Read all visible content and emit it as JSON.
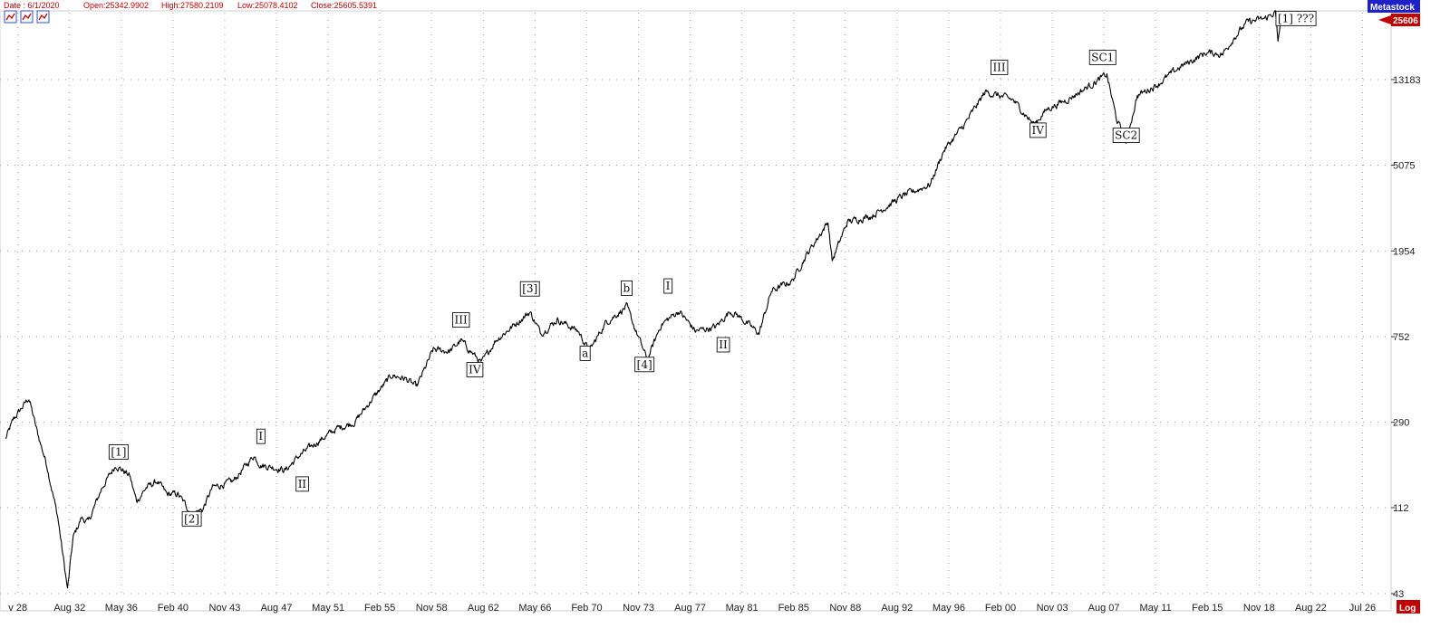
{
  "header": {
    "date": "Date : 6/1/2020",
    "open": "Open:25342.9902",
    "high": "High:27580.2109",
    "low": "Low:25078.4102",
    "close": "Close:25605.5391"
  },
  "badges": {
    "source": "Metastock",
    "scale": "Log"
  },
  "toolbar_icons": [
    "chart-tool-icon",
    "chart-tool-icon",
    "chart-tool-icon"
  ],
  "colors": {
    "badge_blue": "#2020c8",
    "badge_red": "#c00000",
    "price": "#000000",
    "grid": "#9a9a9a"
  },
  "chart_data": {
    "type": "line",
    "scale": "log",
    "ylim": [
      43,
      25606
    ],
    "y_ticks": [
      43,
      112,
      290,
      752,
      1954,
      5075,
      13183
    ],
    "last_price": 25606,
    "x_ticks": [
      "v 28",
      "Aug 32",
      "May 36",
      "Feb 40",
      "Nov 43",
      "Aug 47",
      "May 51",
      "Feb 55",
      "Nov 58",
      "Aug 62",
      "May 66",
      "Feb 70",
      "Nov 73",
      "Aug 77",
      "May 81",
      "Feb 85",
      "Nov 88",
      "Aug 92",
      "May 96",
      "Feb 00",
      "Nov 03",
      "Aug 07",
      "May 11",
      "Feb 15",
      "Nov 18",
      "Aug 22",
      "Jul 26"
    ],
    "series": [
      {
        "values_x": [
          1928.0,
          1928.6,
          1929.7,
          1930.3,
          1931.0,
          1931.8,
          1932.5,
          1932.9,
          1933.5,
          1934.0,
          1935.0,
          1936.0,
          1937.0,
          1937.5,
          1938.2,
          1939.0,
          1939.7,
          1940.5,
          1941.5,
          1942.3,
          1943.0,
          1944.5,
          1946.0,
          1946.5,
          1947.5,
          1948.3,
          1949.3,
          1950.5,
          1952.0,
          1953.3,
          1954.5,
          1956.0,
          1957.0,
          1957.8,
          1959.0,
          1960.2,
          1961.0,
          1962.5,
          1963.5,
          1966.0,
          1966.8,
          1968.0,
          1969.5,
          1970.3,
          1971.5,
          1973.0,
          1974.5,
          1975.5,
          1976.8,
          1978.0,
          1979.5,
          1980.5,
          1981.0,
          1982.6,
          1983.5,
          1985.0,
          1986.0,
          1987.6,
          1987.9,
          1989.0,
          1990.8,
          1993.0,
          1995.0,
          1996.0,
          1997.5,
          1999.0,
          2000.0,
          2001.0,
          2002.5,
          2003.5,
          2005.0,
          2007.8,
          2008.5,
          2009.2,
          2010.0,
          2011.5,
          2013.0,
          2015.0,
          2016.2,
          2017.0,
          2018.0,
          2019.3,
          2020.0,
          2020.2,
          2020.4
        ],
        "values_y": [
          240,
          300,
          380,
          260,
          180,
          100,
          45,
          80,
          100,
          95,
          140,
          180,
          160,
          120,
          140,
          150,
          130,
          130,
          105,
          110,
          140,
          150,
          200,
          180,
          175,
          170,
          200,
          230,
          270,
          290,
          370,
          490,
          470,
          430,
          650,
          640,
          720,
          560,
          720,
          990,
          780,
          910,
          800,
          640,
          880,
          1050,
          580,
          860,
          1000,
          800,
          840,
          1000,
          960,
          780,
          1250,
          1400,
          1850,
          2700,
          1750,
          2700,
          2900,
          3600,
          4100,
          6000,
          8000,
          11500,
          11000,
          10500,
          8000,
          9500,
          10600,
          13900,
          8500,
          6600,
          11000,
          12500,
          15000,
          17800,
          17500,
          21000,
          25000,
          26000,
          28000,
          20000,
          25606
        ]
      }
    ],
    "annotations": [
      {
        "text": "[1]",
        "x": 1936.2,
        "y": 200
      },
      {
        "text": "[2]",
        "x": 1941.5,
        "y": 95
      },
      {
        "text": "I",
        "x": 1946.5,
        "y": 238
      },
      {
        "text": "II",
        "x": 1949.5,
        "y": 140
      },
      {
        "text": "III",
        "x": 1961.0,
        "y": 870
      },
      {
        "text": "IV",
        "x": 1962.0,
        "y": 500
      },
      {
        "text": "[3]",
        "x": 1966.0,
        "y": 1230
      },
      {
        "text": "a",
        "x": 1970.0,
        "y": 600
      },
      {
        "text": "b",
        "x": 1973.0,
        "y": 1240
      },
      {
        "text": "[4]",
        "x": 1974.3,
        "y": 530
      },
      {
        "text": "I",
        "x": 1976.0,
        "y": 1270
      },
      {
        "text": "II",
        "x": 1980.0,
        "y": 660
      },
      {
        "text": "III",
        "x": 2000.0,
        "y": 14500
      },
      {
        "text": "IV",
        "x": 2002.8,
        "y": 7200
      },
      {
        "text": "SC1",
        "x": 2007.5,
        "y": 16200
      },
      {
        "text": "SC2",
        "x": 2009.2,
        "y": 6800
      },
      {
        "text": "[1] ???",
        "x": 2021.5,
        "y": 25000
      }
    ]
  }
}
